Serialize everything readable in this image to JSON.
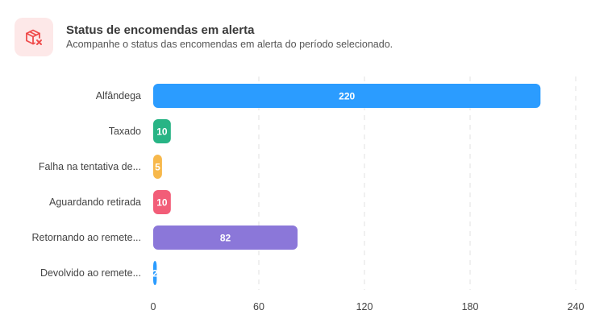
{
  "header": {
    "title": "Status de encomendas em alerta",
    "subtitle": "Acompanhe o status das encomendas em alerta do período selecionado.",
    "icon": "package-x-icon"
  },
  "chart_data": {
    "type": "bar",
    "orientation": "horizontal",
    "categories": [
      "Alfândega",
      "Taxado",
      "Falha na tentativa de...",
      "Aguardando retirada",
      "Retornando ao remete...",
      "Devolvido ao remete..."
    ],
    "values": [
      220,
      10,
      5,
      10,
      82,
      2
    ],
    "value_labels": [
      "220",
      "10",
      "5",
      "10",
      "82",
      "2"
    ],
    "colors": [
      "#2b9cff",
      "#28b485",
      "#f7b84b",
      "#f25d78",
      "#8b77d9",
      "#2b9cff"
    ],
    "xticks": [
      0,
      60,
      120,
      180,
      240
    ],
    "xlim": [
      0,
      240
    ],
    "grid": "vertical dashed",
    "legend": "none"
  },
  "colors": {
    "icon_bg": "#fde8e8",
    "icon_fg": "#ef4b4b"
  }
}
